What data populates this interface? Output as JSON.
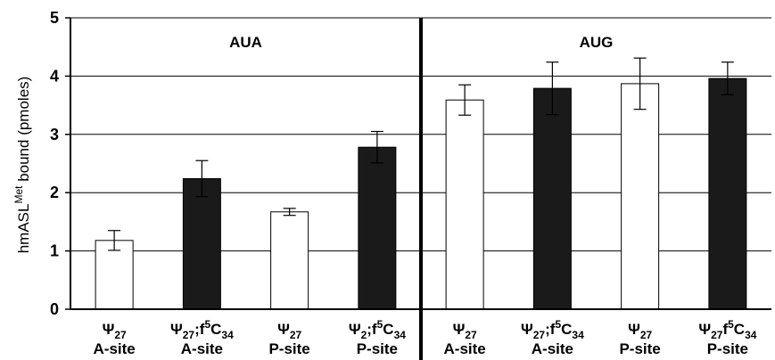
{
  "chart_data": {
    "type": "bar",
    "ylabel_main": "hmASL",
    "ylabel_sup": "Met",
    "ylabel_rest": " bound (pmoles)",
    "ylim": [
      0,
      5
    ],
    "yticks": [
      "0",
      "1",
      "2",
      "3",
      "4",
      "5"
    ],
    "grid": true,
    "panels": [
      {
        "label": "AUA",
        "categories": [
          0,
          1,
          2,
          3
        ]
      },
      {
        "label": "AUG",
        "categories": [
          4,
          5,
          6,
          7
        ]
      }
    ],
    "categories": [
      {
        "line1": [
          [
            "Ψ",
            ""
          ],
          [
            "27",
            "sub"
          ]
        ],
        "line2": "A-site"
      },
      {
        "line1": [
          [
            "Ψ",
            ""
          ],
          [
            "27",
            "sub"
          ],
          [
            ";f",
            ""
          ],
          [
            "5",
            "sup"
          ],
          [
            "C",
            ""
          ],
          [
            "34",
            "sub"
          ]
        ],
        "line2": "A-site"
      },
      {
        "line1": [
          [
            "Ψ",
            ""
          ],
          [
            "27",
            "sub"
          ]
        ],
        "line2": "P-site"
      },
      {
        "line1": [
          [
            "Ψ",
            ""
          ],
          [
            "2",
            "sub"
          ],
          [
            ";f",
            ""
          ],
          [
            "5",
            "sup"
          ],
          [
            "C",
            ""
          ],
          [
            "34",
            "sub"
          ]
        ],
        "line2": "P-site"
      },
      {
        "line1": [
          [
            "Ψ",
            ""
          ],
          [
            "27",
            "sub"
          ]
        ],
        "line2": "A-site"
      },
      {
        "line1": [
          [
            "Ψ",
            ""
          ],
          [
            "27",
            "sub"
          ],
          [
            ";f",
            ""
          ],
          [
            "5",
            "sup"
          ],
          [
            "C",
            ""
          ],
          [
            "34",
            "sub"
          ]
        ],
        "line2": "A-site"
      },
      {
        "line1": [
          [
            "Ψ",
            ""
          ],
          [
            "27",
            "sub"
          ]
        ],
        "line2": "P-site"
      },
      {
        "line1": [
          [
            "Ψ",
            ""
          ],
          [
            "27",
            "sub"
          ],
          [
            "f",
            ""
          ],
          [
            "5",
            "sup"
          ],
          [
            "C",
            ""
          ],
          [
            "34",
            "sub"
          ]
        ],
        "line2": "P-site"
      }
    ],
    "values": [
      1.18,
      2.24,
      1.67,
      2.78,
      3.59,
      3.79,
      3.87,
      3.96
    ],
    "errors": [
      0.17,
      0.31,
      0.06,
      0.27,
      0.26,
      0.45,
      0.44,
      0.28
    ],
    "fills": [
      "#ffffff",
      "#1a1a1a",
      "#ffffff",
      "#1a1a1a",
      "#ffffff",
      "#1a1a1a",
      "#ffffff",
      "#1a1a1a"
    ]
  }
}
